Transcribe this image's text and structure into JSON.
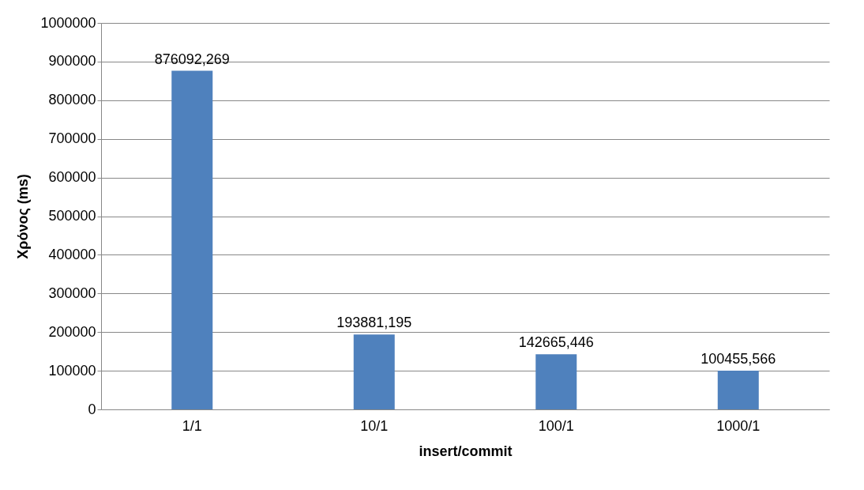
{
  "chart_data": {
    "type": "bar",
    "categories": [
      "1/1",
      "10/1",
      "100/1",
      "1000/1"
    ],
    "values": [
      876092.269,
      193881.195,
      142665.446,
      100455.566
    ],
    "value_labels": [
      "876092,269",
      "193881,195",
      "142665,446",
      "100455,566"
    ],
    "color": "#4f81bd",
    "xlabel": "insert/commit",
    "ylabel": "Χρόνος (ms)",
    "ylim": [
      0,
      1000000
    ],
    "yticks": [
      0,
      100000,
      200000,
      300000,
      400000,
      500000,
      600000,
      700000,
      800000,
      900000,
      1000000
    ],
    "grid": "y"
  }
}
